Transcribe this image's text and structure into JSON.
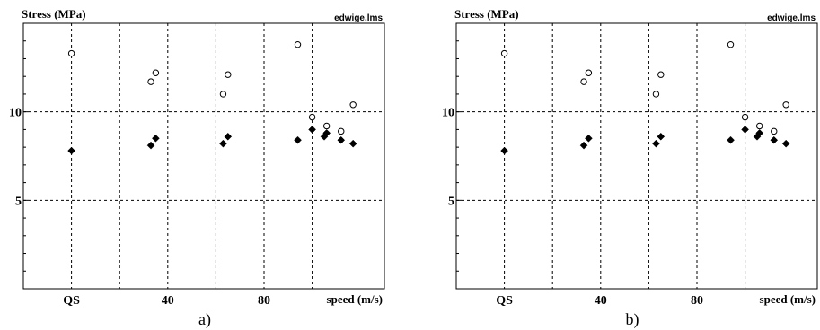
{
  "chart_data": [
    {
      "type": "scatter",
      "panel_label": "a)",
      "ylabel": "Stress (MPa)",
      "xlabel": "speed (m/s)",
      "source": "edwige.lms",
      "x_tick_labels": [
        {
          "x": 0,
          "text": "QS"
        },
        {
          "x": 40,
          "text": "40"
        },
        {
          "x": 80,
          "text": "80"
        }
      ],
      "y_tick_labels": [
        {
          "y": 5,
          "text": "5"
        },
        {
          "y": 10,
          "text": "10"
        }
      ],
      "xlim": [
        -20,
        130
      ],
      "ylim": [
        0,
        15
      ],
      "x_gridlines": [
        0,
        20,
        40,
        60,
        80,
        100
      ],
      "y_gridlines": [
        5,
        10
      ],
      "grid": true,
      "series": [
        {
          "marker": "open-circle",
          "x": [
            0,
            33,
            35,
            63,
            65,
            94,
            100,
            106,
            112,
            117
          ],
          "y": [
            13.3,
            11.7,
            12.2,
            11.0,
            12.1,
            13.8,
            9.7,
            9.2,
            8.9,
            10.4
          ]
        },
        {
          "marker": "filled-diamond",
          "x": [
            0,
            33,
            35,
            63,
            65,
            94,
            100,
            105,
            106,
            112,
            117
          ],
          "y": [
            7.8,
            8.1,
            8.5,
            8.2,
            8.6,
            8.4,
            9.0,
            8.6,
            8.8,
            8.4,
            8.2
          ]
        }
      ]
    },
    {
      "type": "scatter",
      "panel_label": "b)",
      "ylabel": "Stress (MPa)",
      "xlabel": "speed (m/s)",
      "source": "edwige.lms",
      "x_tick_labels": [
        {
          "x": 0,
          "text": "QS"
        },
        {
          "x": 40,
          "text": "40"
        },
        {
          "x": 80,
          "text": "80"
        }
      ],
      "y_tick_labels": [
        {
          "y": 5,
          "text": "5"
        },
        {
          "y": 10,
          "text": "10"
        }
      ],
      "xlim": [
        -20,
        130
      ],
      "ylim": [
        0,
        15
      ],
      "x_gridlines": [
        0,
        20,
        40,
        60,
        80,
        100
      ],
      "y_gridlines": [
        5,
        10
      ],
      "grid": true,
      "series": [
        {
          "marker": "open-circle",
          "x": [
            0,
            33,
            35,
            63,
            65,
            94,
            100,
            106,
            112,
            117
          ],
          "y": [
            13.3,
            11.7,
            12.2,
            11.0,
            12.1,
            13.8,
            9.7,
            9.2,
            8.9,
            10.4
          ]
        },
        {
          "marker": "filled-diamond",
          "x": [
            0,
            33,
            35,
            63,
            65,
            94,
            100,
            105,
            106,
            112,
            117
          ],
          "y": [
            7.8,
            8.1,
            8.5,
            8.2,
            8.6,
            8.4,
            9.0,
            8.6,
            8.8,
            8.4,
            8.2
          ]
        }
      ]
    }
  ]
}
